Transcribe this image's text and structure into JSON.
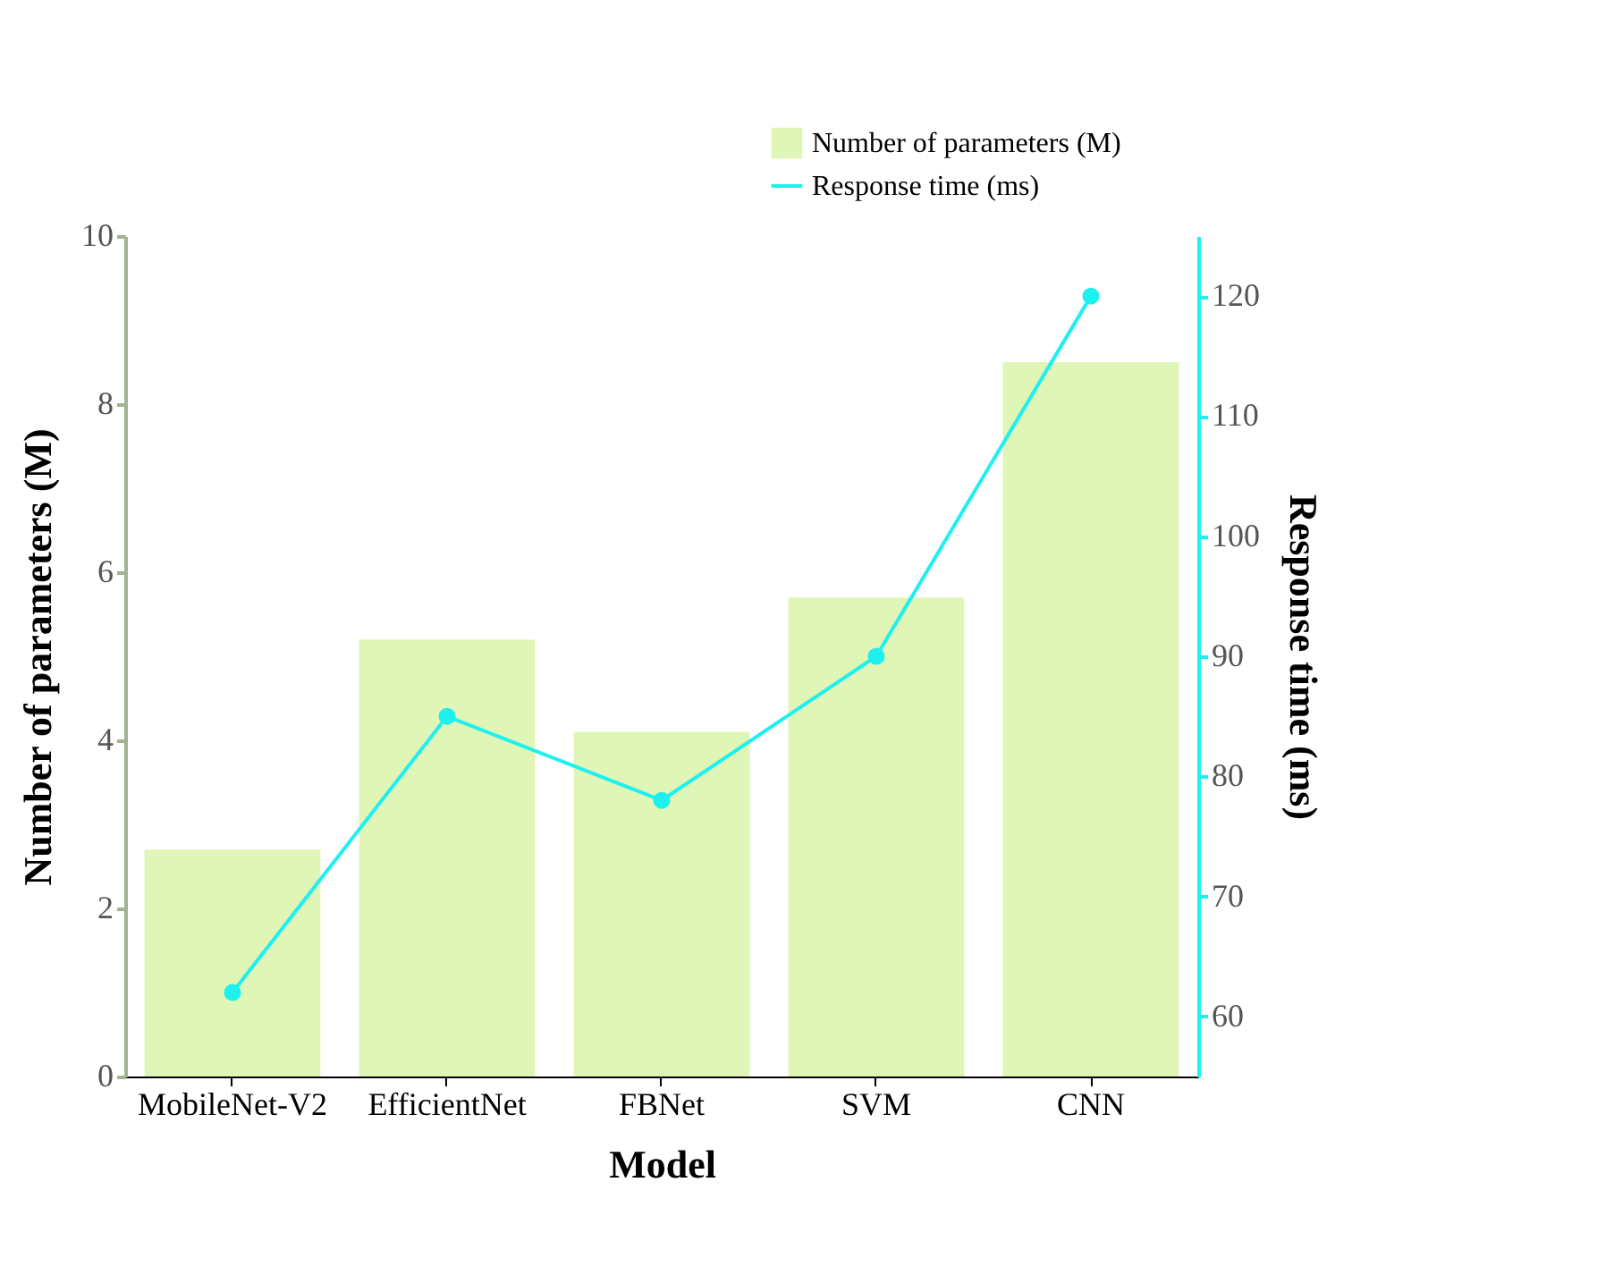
{
  "chart_data": {
    "type": "bar",
    "xlabel": "Model",
    "ylabel": "Number of parameters (M)",
    "y2label": "Response time (ms)",
    "categories": [
      "MobileNet-V2",
      "EfficientNet",
      "FBNet",
      "SVM",
      "CNN"
    ],
    "series": [
      {
        "name": "Number of parameters (M)",
        "color": "#dff6b6",
        "values": [
          2.7,
          5.2,
          4.1,
          5.7,
          8.5
        ]
      },
      {
        "name": "Response time (ms)",
        "type": "line",
        "axis": "y2",
        "color": "#1ef0f0",
        "marker": "circle",
        "values": [
          62,
          85,
          78,
          90,
          120
        ]
      }
    ],
    "ylim": [
      0,
      10
    ],
    "yticks": [
      0,
      2,
      4,
      6,
      8,
      10
    ],
    "y2lim": [
      55,
      125
    ],
    "y2ticks": [
      60,
      70,
      80,
      90,
      100,
      110,
      120
    ],
    "grid": false,
    "legend": "top right"
  }
}
